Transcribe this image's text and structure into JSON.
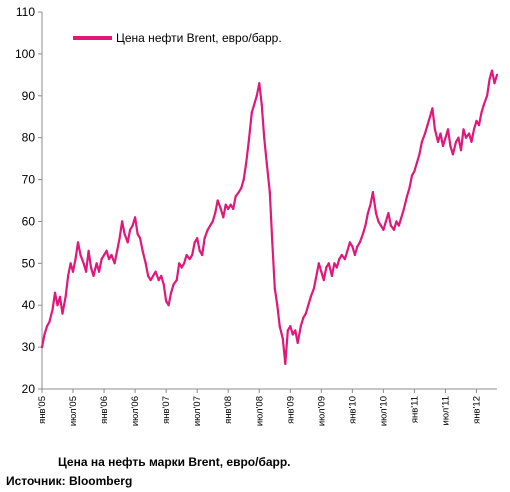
{
  "caption": "Цена на нефть марки Brent, евро/барр.",
  "source": "Источник: Bloomberg",
  "chart_data": {
    "type": "line",
    "title": "",
    "xlabel": "",
    "ylabel": "",
    "ylim": [
      20,
      110
    ],
    "yticks": [
      20,
      30,
      40,
      50,
      60,
      70,
      80,
      90,
      100,
      110
    ],
    "grid": false,
    "legend_position": "top-left",
    "xlim": [
      2005.0,
      2012.33
    ],
    "x_ticks": [
      {
        "label": "янв'05",
        "x": 2005.0
      },
      {
        "label": "июл'05",
        "x": 2005.5
      },
      {
        "label": "янв'06",
        "x": 2006.0
      },
      {
        "label": "июл'06",
        "x": 2006.5
      },
      {
        "label": "янв'07",
        "x": 2007.0
      },
      {
        "label": "июл'07",
        "x": 2007.5
      },
      {
        "label": "янв'08",
        "x": 2008.0
      },
      {
        "label": "июл'08",
        "x": 2008.5
      },
      {
        "label": "янв'09",
        "x": 2009.0
      },
      {
        "label": "июл'09",
        "x": 2009.5
      },
      {
        "label": "янв'10",
        "x": 2010.0
      },
      {
        "label": "июл'10",
        "x": 2010.5
      },
      {
        "label": "янв'11",
        "x": 2011.0
      },
      {
        "label": "июл'11",
        "x": 2011.5
      },
      {
        "label": "янв'12",
        "x": 2012.0
      }
    ],
    "series": [
      {
        "name": "Цена нефти Brent, евро/барр.",
        "color": "#e0187a",
        "points": [
          [
            2005.0,
            30
          ],
          [
            2005.04,
            33
          ],
          [
            2005.08,
            35
          ],
          [
            2005.12,
            36
          ],
          [
            2005.17,
            39
          ],
          [
            2005.21,
            43
          ],
          [
            2005.25,
            40
          ],
          [
            2005.29,
            42
          ],
          [
            2005.33,
            38
          ],
          [
            2005.38,
            42
          ],
          [
            2005.42,
            47
          ],
          [
            2005.46,
            50
          ],
          [
            2005.5,
            48
          ],
          [
            2005.54,
            51
          ],
          [
            2005.58,
            55
          ],
          [
            2005.62,
            52
          ],
          [
            2005.67,
            50
          ],
          [
            2005.71,
            48
          ],
          [
            2005.75,
            53
          ],
          [
            2005.79,
            49
          ],
          [
            2005.83,
            47
          ],
          [
            2005.88,
            50
          ],
          [
            2005.92,
            48
          ],
          [
            2005.96,
            51
          ],
          [
            2006.0,
            52
          ],
          [
            2006.04,
            53
          ],
          [
            2006.08,
            51
          ],
          [
            2006.12,
            52
          ],
          [
            2006.17,
            50
          ],
          [
            2006.21,
            53
          ],
          [
            2006.25,
            56
          ],
          [
            2006.29,
            60
          ],
          [
            2006.33,
            57
          ],
          [
            2006.38,
            55
          ],
          [
            2006.42,
            58
          ],
          [
            2006.46,
            59
          ],
          [
            2006.5,
            61
          ],
          [
            2006.54,
            57
          ],
          [
            2006.58,
            56
          ],
          [
            2006.62,
            53
          ],
          [
            2006.67,
            50
          ],
          [
            2006.71,
            47
          ],
          [
            2006.75,
            46
          ],
          [
            2006.79,
            47
          ],
          [
            2006.83,
            48
          ],
          [
            2006.88,
            46
          ],
          [
            2006.92,
            47
          ],
          [
            2006.96,
            45
          ],
          [
            2007.0,
            41
          ],
          [
            2007.04,
            40
          ],
          [
            2007.08,
            43
          ],
          [
            2007.12,
            45
          ],
          [
            2007.17,
            46
          ],
          [
            2007.21,
            50
          ],
          [
            2007.25,
            49
          ],
          [
            2007.29,
            50
          ],
          [
            2007.33,
            52
          ],
          [
            2007.38,
            51
          ],
          [
            2007.42,
            52
          ],
          [
            2007.46,
            55
          ],
          [
            2007.5,
            56
          ],
          [
            2007.54,
            53
          ],
          [
            2007.58,
            52
          ],
          [
            2007.62,
            56
          ],
          [
            2007.67,
            58
          ],
          [
            2007.71,
            59
          ],
          [
            2007.75,
            60
          ],
          [
            2007.79,
            62
          ],
          [
            2007.83,
            65
          ],
          [
            2007.88,
            63
          ],
          [
            2007.92,
            61
          ],
          [
            2007.96,
            64
          ],
          [
            2008.0,
            63
          ],
          [
            2008.04,
            64
          ],
          [
            2008.08,
            63
          ],
          [
            2008.12,
            66
          ],
          [
            2008.17,
            67
          ],
          [
            2008.21,
            68
          ],
          [
            2008.25,
            70
          ],
          [
            2008.29,
            74
          ],
          [
            2008.33,
            79
          ],
          [
            2008.38,
            86
          ],
          [
            2008.42,
            88
          ],
          [
            2008.46,
            90
          ],
          [
            2008.5,
            93
          ],
          [
            2008.54,
            88
          ],
          [
            2008.58,
            80
          ],
          [
            2008.62,
            74
          ],
          [
            2008.67,
            67
          ],
          [
            2008.71,
            55
          ],
          [
            2008.75,
            44
          ],
          [
            2008.79,
            40
          ],
          [
            2008.83,
            35
          ],
          [
            2008.88,
            32
          ],
          [
            2008.92,
            26
          ],
          [
            2008.96,
            34
          ],
          [
            2009.0,
            35
          ],
          [
            2009.04,
            33
          ],
          [
            2009.08,
            34
          ],
          [
            2009.12,
            31
          ],
          [
            2009.17,
            35
          ],
          [
            2009.21,
            37
          ],
          [
            2009.25,
            38
          ],
          [
            2009.29,
            40
          ],
          [
            2009.33,
            42
          ],
          [
            2009.38,
            44
          ],
          [
            2009.42,
            47
          ],
          [
            2009.46,
            50
          ],
          [
            2009.5,
            48
          ],
          [
            2009.54,
            46
          ],
          [
            2009.58,
            49
          ],
          [
            2009.62,
            50
          ],
          [
            2009.67,
            47
          ],
          [
            2009.71,
            50
          ],
          [
            2009.75,
            49
          ],
          [
            2009.79,
            51
          ],
          [
            2009.83,
            52
          ],
          [
            2009.88,
            51
          ],
          [
            2009.92,
            53
          ],
          [
            2009.96,
            55
          ],
          [
            2010.0,
            54
          ],
          [
            2010.04,
            52
          ],
          [
            2010.08,
            54
          ],
          [
            2010.12,
            55
          ],
          [
            2010.17,
            57
          ],
          [
            2010.21,
            59
          ],
          [
            2010.25,
            62
          ],
          [
            2010.29,
            64
          ],
          [
            2010.33,
            67
          ],
          [
            2010.38,
            62
          ],
          [
            2010.42,
            60
          ],
          [
            2010.46,
            59
          ],
          [
            2010.5,
            58
          ],
          [
            2010.54,
            60
          ],
          [
            2010.58,
            62
          ],
          [
            2010.62,
            59
          ],
          [
            2010.67,
            58
          ],
          [
            2010.71,
            60
          ],
          [
            2010.75,
            59
          ],
          [
            2010.79,
            61
          ],
          [
            2010.83,
            63
          ],
          [
            2010.88,
            66
          ],
          [
            2010.92,
            68
          ],
          [
            2010.96,
            71
          ],
          [
            2011.0,
            72
          ],
          [
            2011.04,
            74
          ],
          [
            2011.08,
            76
          ],
          [
            2011.12,
            79
          ],
          [
            2011.17,
            81
          ],
          [
            2011.21,
            83
          ],
          [
            2011.25,
            85
          ],
          [
            2011.29,
            87
          ],
          [
            2011.33,
            82
          ],
          [
            2011.38,
            79
          ],
          [
            2011.42,
            81
          ],
          [
            2011.46,
            78
          ],
          [
            2011.5,
            80
          ],
          [
            2011.54,
            82
          ],
          [
            2011.58,
            78
          ],
          [
            2011.62,
            76
          ],
          [
            2011.67,
            79
          ],
          [
            2011.71,
            80
          ],
          [
            2011.75,
            77
          ],
          [
            2011.79,
            82
          ],
          [
            2011.83,
            80
          ],
          [
            2011.88,
            81
          ],
          [
            2011.92,
            79
          ],
          [
            2011.96,
            82
          ],
          [
            2012.0,
            84
          ],
          [
            2012.04,
            83
          ],
          [
            2012.08,
            86
          ],
          [
            2012.12,
            88
          ],
          [
            2012.17,
            90
          ],
          [
            2012.21,
            94
          ],
          [
            2012.25,
            96
          ],
          [
            2012.29,
            93
          ],
          [
            2012.33,
            95
          ]
        ]
      }
    ]
  }
}
